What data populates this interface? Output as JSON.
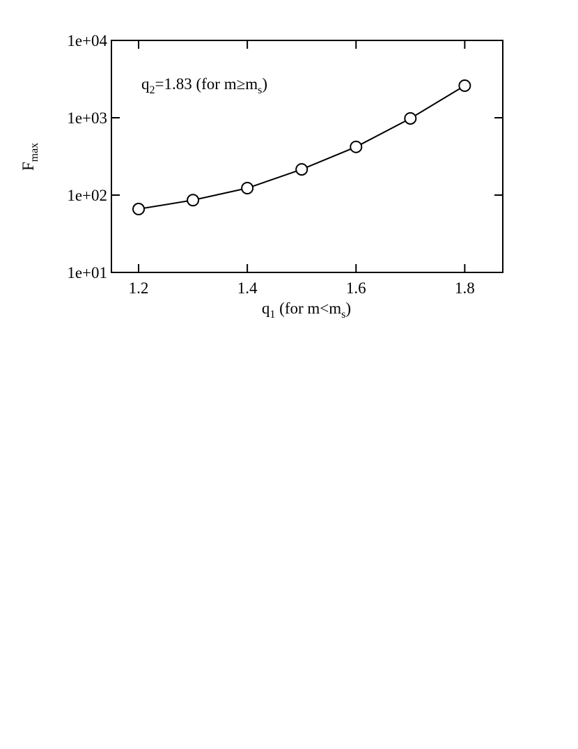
{
  "chart_data": {
    "type": "line",
    "x_label": [
      "q",
      "1",
      " (for m<m",
      "s",
      ")"
    ],
    "y_label": [
      "F",
      "max"
    ],
    "annotation": [
      "q",
      "2",
      "=1.83 (for m≥m",
      "s",
      ")"
    ],
    "x": [
      1.2,
      1.3,
      1.4,
      1.5,
      1.6,
      1.7,
      1.8
    ],
    "series": [
      {
        "color": "#000000",
        "values": [
          66,
          86,
          123,
          215,
          420,
          980,
          2600
        ]
      }
    ],
    "xlim": [
      1.15,
      1.87
    ],
    "xticks": [
      1.2,
      1.4,
      1.6,
      1.8
    ],
    "ylim": [
      10,
      10000
    ],
    "yticks": [
      {
        "value": 10,
        "label": "1e+01"
      },
      {
        "value": 100,
        "label": "1e+02"
      },
      {
        "value": 1000,
        "label": "1e+03"
      },
      {
        "value": 10000,
        "label": "1e+04"
      }
    ],
    "log_y": true,
    "marker": "circle"
  }
}
